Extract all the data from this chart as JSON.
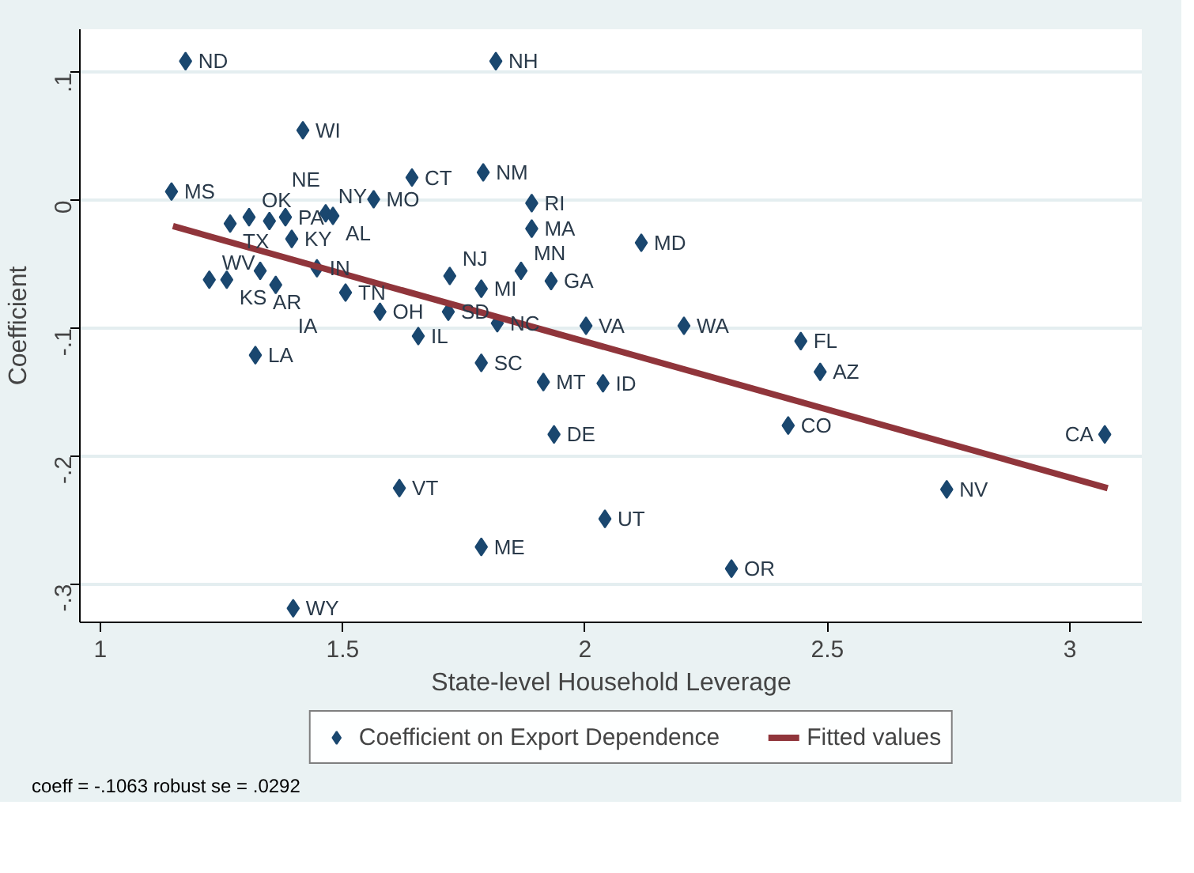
{
  "chart_data": {
    "type": "scatter",
    "xlabel": "State-level Household Leverage",
    "ylabel": "Coefficient",
    "xlim": [
      0.958,
      3.15
    ],
    "ylim": [
      -0.33,
      0.134
    ],
    "xticks": [
      1,
      1.5,
      2,
      2.5,
      3
    ],
    "yticks": [
      {
        "value": -0.3,
        "label": "-.3"
      },
      {
        "value": -0.2,
        "label": "-.2"
      },
      {
        "value": -0.1,
        "label": "-.1"
      },
      {
        "value": 0,
        "label": "0"
      },
      {
        "value": 0.1,
        "label": ".1"
      }
    ],
    "grid": "y",
    "legend": "bottom",
    "series": [
      {
        "name": "Coefficient on Export Dependence",
        "marker": "diamond",
        "color": "#1a476f",
        "x": [
          1.176,
          1.816,
          1.418,
          1.643,
          1.79,
          1.147,
          1.564,
          1.89,
          1.89,
          2.116,
          1.268,
          1.307,
          1.349,
          1.382,
          1.465,
          1.48,
          1.395,
          1.225,
          1.261,
          1.33,
          1.362,
          1.447,
          1.506,
          1.577,
          1.656,
          1.32,
          1.718,
          1.819,
          1.721,
          1.786,
          1.868,
          1.93,
          1.786,
          1.914,
          2.037,
          2.002,
          2.204,
          2.445,
          2.485,
          2.419,
          3.072,
          2.746,
          1.936,
          2.041,
          1.617,
          1.786,
          2.302,
          1.398
        ],
        "values": [
          0.109,
          0.109,
          0.055,
          0.018,
          0.022,
          0.007,
          0.001,
          -0.002,
          -0.022,
          -0.033,
          -0.018,
          -0.013,
          -0.016,
          -0.013,
          -0.01,
          -0.012,
          -0.03,
          -0.062,
          -0.062,
          -0.055,
          -0.066,
          -0.053,
          -0.072,
          -0.087,
          -0.106,
          -0.121,
          -0.087,
          -0.096,
          -0.059,
          -0.069,
          -0.055,
          -0.063,
          -0.127,
          -0.142,
          -0.143,
          -0.098,
          -0.098,
          -0.11,
          -0.134,
          -0.176,
          -0.183,
          -0.226,
          -0.183,
          -0.249,
          -0.225,
          -0.271,
          -0.288,
          -0.319
        ]
      },
      {
        "name": "Fitted values",
        "type": "line",
        "color": "#90353b",
        "line_style": "solid",
        "x": [
          1.15,
          3.078
        ],
        "values": [
          -0.02,
          -0.225
        ]
      }
    ],
    "annotations": [
      {
        "text": "ND",
        "x": 1.176,
        "y": 0.109
      },
      {
        "text": "NH",
        "x": 1.816,
        "y": 0.109
      },
      {
        "text": "WI",
        "x": 1.418,
        "y": 0.055
      },
      {
        "text": "CT",
        "x": 1.643,
        "y": 0.018
      },
      {
        "text": "NM",
        "x": 1.79,
        "y": 0.022
      },
      {
        "text": "MS",
        "x": 1.147,
        "y": 0.007
      },
      {
        "text": "MO",
        "x": 1.564,
        "y": 0.001
      },
      {
        "text": "RI",
        "x": 1.89,
        "y": -0.002
      },
      {
        "text": "MA",
        "x": 1.89,
        "y": -0.022
      },
      {
        "text": "MD",
        "x": 2.116,
        "y": -0.033
      },
      {
        "text": "TX",
        "x": 1.268,
        "y": -0.018
      },
      {
        "text": "OK",
        "x": 1.307,
        "y": -0.013
      },
      {
        "text": "NE",
        "x": 1.349,
        "y": -0.016
      },
      {
        "text": "PA",
        "x": 1.382,
        "y": -0.013
      },
      {
        "text": "NY",
        "x": 1.465,
        "y": -0.01
      },
      {
        "text": "AL",
        "x": 1.48,
        "y": -0.012
      },
      {
        "text": "KY",
        "x": 1.395,
        "y": -0.03
      },
      {
        "text": "WV",
        "x": 1.225,
        "y": -0.062
      },
      {
        "text": "KS",
        "x": 1.261,
        "y": -0.062
      },
      {
        "text": "AR",
        "x": 1.33,
        "y": -0.055
      },
      {
        "text": "IA",
        "x": 1.362,
        "y": -0.066
      },
      {
        "text": "IN",
        "x": 1.447,
        "y": -0.053
      },
      {
        "text": "TN",
        "x": 1.506,
        "y": -0.072
      },
      {
        "text": "OH",
        "x": 1.577,
        "y": -0.087
      },
      {
        "text": "IL",
        "x": 1.656,
        "y": -0.106
      },
      {
        "text": "LA",
        "x": 1.32,
        "y": -0.121
      },
      {
        "text": "SD",
        "x": 1.718,
        "y": -0.087
      },
      {
        "text": "NC",
        "x": 1.819,
        "y": -0.096
      },
      {
        "text": "NJ",
        "x": 1.721,
        "y": -0.059
      },
      {
        "text": "MI",
        "x": 1.786,
        "y": -0.069
      },
      {
        "text": "MN",
        "x": 1.868,
        "y": -0.055
      },
      {
        "text": "GA",
        "x": 1.93,
        "y": -0.063
      },
      {
        "text": "SC",
        "x": 1.786,
        "y": -0.127
      },
      {
        "text": "MT",
        "x": 1.914,
        "y": -0.142
      },
      {
        "text": "ID",
        "x": 2.037,
        "y": -0.143
      },
      {
        "text": "VA",
        "x": 2.002,
        "y": -0.098
      },
      {
        "text": "WA",
        "x": 2.204,
        "y": -0.098
      },
      {
        "text": "FL",
        "x": 2.445,
        "y": -0.11
      },
      {
        "text": "AZ",
        "x": 2.485,
        "y": -0.134
      },
      {
        "text": "CO",
        "x": 2.419,
        "y": -0.176
      },
      {
        "text": "CA",
        "x": 3.072,
        "y": -0.183
      },
      {
        "text": "NV",
        "x": 2.746,
        "y": -0.226
      },
      {
        "text": "DE",
        "x": 1.936,
        "y": -0.183
      },
      {
        "text": "UT",
        "x": 2.041,
        "y": -0.249
      },
      {
        "text": "VT",
        "x": 1.617,
        "y": -0.225
      },
      {
        "text": "ME",
        "x": 1.786,
        "y": -0.271
      },
      {
        "text": "OR",
        "x": 2.302,
        "y": -0.288
      },
      {
        "text": "WY",
        "x": 1.398,
        "y": -0.319
      },
      "coeff = -.1063  robust se = .0292"
    ]
  }
}
